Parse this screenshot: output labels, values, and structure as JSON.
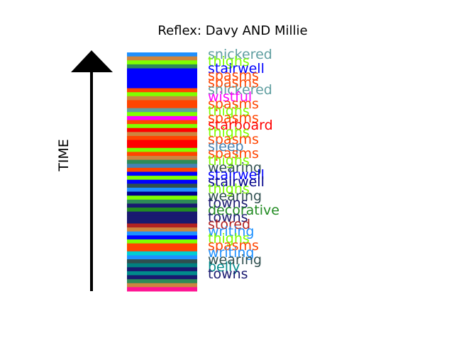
{
  "chart_data": {
    "type": "bar",
    "title": "Reflex: Davy AND Millie",
    "ylabel": "TIME",
    "grid": false,
    "stripe_colors": [
      "#1e90ff",
      "#cd853f",
      "#7fff00",
      "#2e8b57",
      "#0000ff",
      "#0000ff",
      "#0000ff",
      "#0000ff",
      "#0000ff",
      "#ff4500",
      "#7fff00",
      "#cd853f",
      "#ff4500",
      "#ff4500",
      "#5f9ea0",
      "#7fff00",
      "#ff00ff",
      "#ff4500",
      "#7fff00",
      "#ff0000",
      "#cd853f",
      "#ff4500",
      "#ff0000",
      "#ff0000",
      "#7fff00",
      "#ff4500",
      "#cd853f",
      "#2e8b57",
      "#4682b4",
      "#ff4500",
      "#0000ff",
      "#7fff00",
      "#0000ff",
      "#2f4f4f",
      "#1e90ff",
      "#00008b",
      "#7fff00",
      "#2e8b57",
      "#191970",
      "#228b22",
      "#191970",
      "#191970",
      "#191970",
      "#b22222",
      "#cd853f",
      "#1e90ff",
      "#0000ff",
      "#7fff00",
      "#ff4500",
      "#ff4500",
      "#00ced1",
      "#1e90ff",
      "#2f4f4f",
      "#008080",
      "#191970",
      "#008b8b",
      "#191970",
      "#2e8b57",
      "#cd853f",
      "#ff1493"
    ],
    "labels": [
      {
        "word": "snickered",
        "color": "#5f9ea0"
      },
      {
        "word": "thighs",
        "color": "#7fff00"
      },
      {
        "word": "stairwell",
        "color": "#0000ff"
      },
      {
        "word": "spasms",
        "color": "#ff4500"
      },
      {
        "word": "spasms",
        "color": "#ff4500"
      },
      {
        "word": "snickered",
        "color": "#5f9ea0"
      },
      {
        "word": "wistful",
        "color": "#ff00ff"
      },
      {
        "word": "spasms",
        "color": "#ff4500"
      },
      {
        "word": "thighs",
        "color": "#7fff00"
      },
      {
        "word": "spasms",
        "color": "#ff4500"
      },
      {
        "word": "starboard",
        "color": "#ff0000"
      },
      {
        "word": "thighs",
        "color": "#7fff00"
      },
      {
        "word": "spasms",
        "color": "#ff4500"
      },
      {
        "word": "sleep",
        "color": "#4682b4"
      },
      {
        "word": "spasms",
        "color": "#ff4500"
      },
      {
        "word": "thighs",
        "color": "#7fff00"
      },
      {
        "word": "wearing",
        "color": "#2f4f4f"
      },
      {
        "word": "stairwell",
        "color": "#0000ff"
      },
      {
        "word": "stairwell",
        "color": "#00008b"
      },
      {
        "word": "thighs",
        "color": "#7fff00"
      },
      {
        "word": "wearing",
        "color": "#2f4f4f"
      },
      {
        "word": "towns",
        "color": "#191970"
      },
      {
        "word": "decorative",
        "color": "#228b22"
      },
      {
        "word": "towns",
        "color": "#191970"
      },
      {
        "word": "stored",
        "color": "#b22222"
      },
      {
        "word": "writing",
        "color": "#1e90ff"
      },
      {
        "word": "thighs",
        "color": "#7fff00"
      },
      {
        "word": "spasms",
        "color": "#ff4500"
      },
      {
        "word": "writing",
        "color": "#1e90ff"
      },
      {
        "word": "wearing",
        "color": "#2f4f4f"
      },
      {
        "word": "belly",
        "color": "#008b8b"
      },
      {
        "word": "towns",
        "color": "#191970"
      }
    ]
  }
}
